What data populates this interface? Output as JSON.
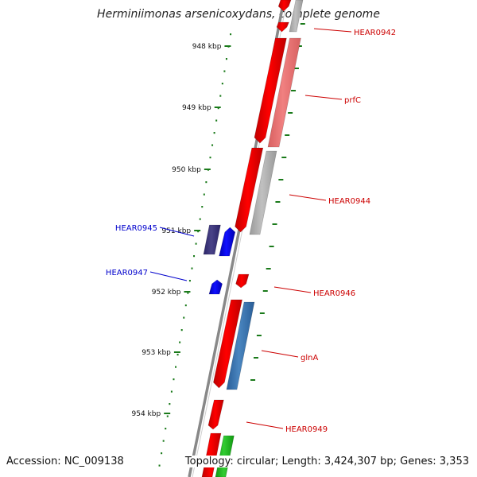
{
  "title": "Herminiimonas arsenicoxydans, complete genome",
  "footer": {
    "accession": "Accession: NC_009138",
    "topology": "Topology: circular; Length: 3,424,307 bp; Genes: 3,353"
  },
  "colors": {
    "backbone": "#888888",
    "tick": "#1a7a1a",
    "label_forward": "#cc0000",
    "label_reverse": "#0000cc",
    "gene_red": "#ff0000",
    "gene_pink": "#f08080",
    "gene_grey": "#c0c0c0",
    "gene_blue": "#1010ff",
    "gene_navy": "#4a4488",
    "gene_steel": "#4a86c0",
    "gene_green": "#33cc33"
  },
  "scale": {
    "tick_labels": [
      "948 kbp",
      "949 kbp",
      "950 kbp",
      "951 kbp",
      "952 kbp",
      "953 kbp",
      "954 kbp"
    ]
  },
  "genes": [
    {
      "name": "HEAR0942",
      "strand": "forward"
    },
    {
      "name": "prfC",
      "strand": "forward"
    },
    {
      "name": "HEAR0944",
      "strand": "forward"
    },
    {
      "name": "HEAR0945",
      "strand": "reverse"
    },
    {
      "name": "HEAR0946",
      "strand": "forward"
    },
    {
      "name": "HEAR0947",
      "strand": "reverse"
    },
    {
      "name": "glnA",
      "strand": "forward"
    },
    {
      "name": "HEAR0949",
      "strand": "forward"
    }
  ]
}
